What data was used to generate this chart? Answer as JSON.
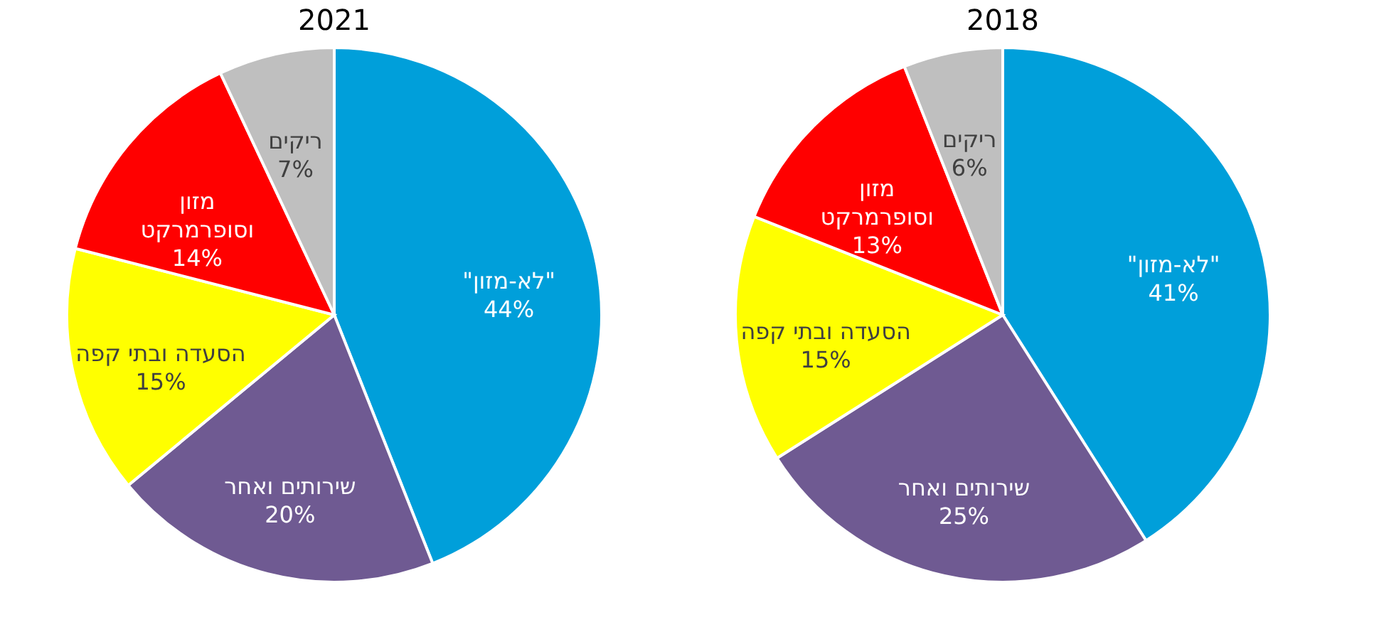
{
  "chart_data": [
    {
      "type": "pie",
      "title": "2021",
      "categories": [
        "\"לא-מזון\"",
        "שירותים ואחר",
        "הסעדה ובתי קפה",
        "מזון וסופרמרקט",
        "ריקים"
      ],
      "values": [
        44,
        20,
        15,
        14,
        7
      ],
      "value_labels": [
        "44%",
        "20%",
        "15%",
        "14%",
        "7%"
      ],
      "colors": [
        "#009fda",
        "#6f5a92",
        "#ffff00",
        "#ff0000",
        "#bfbfbf"
      ]
    },
    {
      "type": "pie",
      "title": "2018",
      "categories": [
        "\"לא-מזון\"",
        "שירותים ואחר",
        "הסעדה ובתי קפה",
        "מזון וסופרמרקט",
        "ריקים"
      ],
      "values": [
        41,
        25,
        15,
        13,
        6
      ],
      "value_labels": [
        "41%",
        "25%",
        "15%",
        "13%",
        "6%"
      ],
      "colors": [
        "#009fda",
        "#6f5a92",
        "#ffff00",
        "#ff0000",
        "#bfbfbf"
      ]
    }
  ]
}
